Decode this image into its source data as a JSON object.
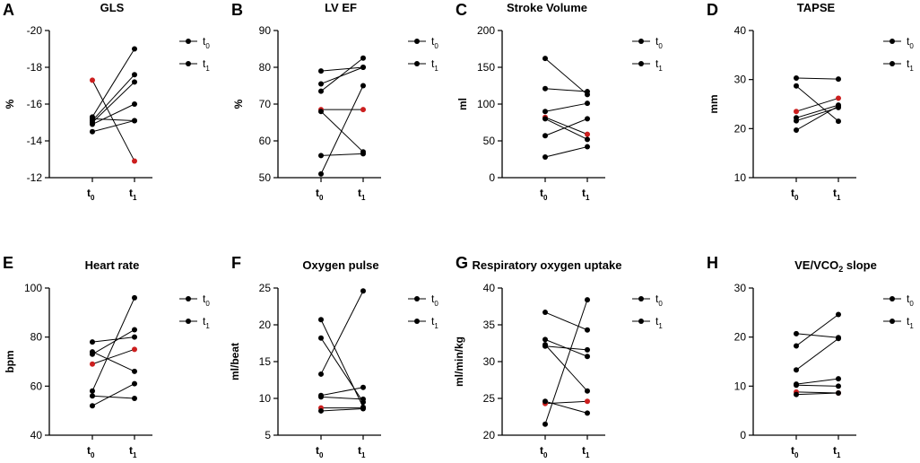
{
  "colors": {
    "point": "#000000",
    "highlight": "#cc1f1f"
  },
  "chart_data": [
    {
      "type": "line",
      "panel": "A",
      "title": "GLS",
      "ylabel": "%",
      "ylim": [
        -12,
        -20
      ],
      "yticks": [
        -12,
        -14,
        -16,
        -18,
        -20
      ],
      "categories": [
        "t0",
        "t1"
      ],
      "legend": [
        "t0",
        "t1"
      ],
      "highlight_index": 0,
      "series": [
        {
          "values": [
            -17.3,
            -12.9
          ]
        },
        {
          "values": [
            -15.3,
            -19.0
          ]
        },
        {
          "values": [
            -15.1,
            -17.6
          ]
        },
        {
          "values": [
            -15.0,
            -17.2
          ]
        },
        {
          "values": [
            -14.9,
            -16.0
          ]
        },
        {
          "values": [
            -15.2,
            -15.1
          ]
        },
        {
          "values": [
            -14.5,
            -15.1
          ]
        }
      ]
    },
    {
      "type": "line",
      "panel": "B",
      "title": "LV EF",
      "ylabel": "%",
      "ylim": [
        50,
        90
      ],
      "yticks": [
        50,
        60,
        70,
        80,
        90
      ],
      "categories": [
        "t0",
        "t1"
      ],
      "legend": [
        "t0",
        "t1"
      ],
      "highlight_index": 0,
      "series": [
        {
          "values": [
            68.5,
            68.5
          ]
        },
        {
          "values": [
            79.0,
            80.0
          ]
        },
        {
          "values": [
            75.5,
            80.0
          ]
        },
        {
          "values": [
            73.5,
            82.5
          ]
        },
        {
          "values": [
            68.0,
            57.0
          ]
        },
        {
          "values": [
            56.0,
            56.5
          ]
        },
        {
          "values": [
            51.0,
            75.0
          ]
        }
      ]
    },
    {
      "type": "line",
      "panel": "C",
      "title": "Stroke Volume",
      "ylabel": "ml",
      "ylim": [
        0,
        200
      ],
      "yticks": [
        0,
        50,
        100,
        150,
        200
      ],
      "categories": [
        "t0",
        "t1"
      ],
      "legend": [
        "t0",
        "t1"
      ],
      "highlight_index": 0,
      "series": [
        {
          "values": [
            82,
            59
          ]
        },
        {
          "values": [
            162,
            113
          ]
        },
        {
          "values": [
            121,
            117
          ]
        },
        {
          "values": [
            90,
            101
          ]
        },
        {
          "values": [
            80,
            52
          ]
        },
        {
          "values": [
            57,
            80
          ]
        },
        {
          "values": [
            28,
            42
          ]
        }
      ]
    },
    {
      "type": "line",
      "panel": "D",
      "title": "TAPSE",
      "ylabel": "mm",
      "ylim": [
        10,
        40
      ],
      "yticks": [
        10,
        20,
        30,
        40
      ],
      "categories": [
        "t0",
        "t1"
      ],
      "legend": [
        "t0",
        "t1"
      ],
      "highlight_index": 0,
      "series": [
        {
          "values": [
            23.5,
            26.2
          ]
        },
        {
          "values": [
            30.3,
            30.1
          ]
        },
        {
          "values": [
            28.7,
            21.5
          ]
        },
        {
          "values": [
            22.2,
            24.8
          ]
        },
        {
          "values": [
            21.6,
            24.3
          ]
        },
        {
          "values": [
            19.7,
            24.6
          ]
        }
      ]
    },
    {
      "type": "line",
      "panel": "E",
      "title": "Heart rate",
      "ylabel": "bpm",
      "ylim": [
        40,
        100
      ],
      "yticks": [
        40,
        60,
        80,
        100
      ],
      "categories": [
        "t0",
        "t1"
      ],
      "legend": [
        "t0",
        "t1"
      ],
      "highlight_index": 0,
      "series": [
        {
          "values": [
            69,
            75
          ]
        },
        {
          "values": [
            78,
            80
          ]
        },
        {
          "values": [
            74,
            66
          ]
        },
        {
          "values": [
            73,
            83
          ]
        },
        {
          "values": [
            58,
            96
          ]
        },
        {
          "values": [
            56,
            55
          ]
        },
        {
          "values": [
            52,
            61
          ]
        }
      ]
    },
    {
      "type": "line",
      "panel": "F",
      "title": "Oxygen pulse",
      "ylabel": "ml/beat",
      "ylim": [
        5,
        25
      ],
      "yticks": [
        5,
        10,
        15,
        20,
        25
      ],
      "categories": [
        "t0",
        "t1"
      ],
      "legend": [
        "t0",
        "t1"
      ],
      "highlight_index": 0,
      "series": [
        {
          "values": [
            8.7,
            8.7
          ]
        },
        {
          "values": [
            20.7,
            8.8
          ]
        },
        {
          "values": [
            18.2,
            9.5
          ]
        },
        {
          "values": [
            13.3,
            24.6
          ]
        },
        {
          "values": [
            10.4,
            11.5
          ]
        },
        {
          "values": [
            10.2,
            9.9
          ]
        },
        {
          "values": [
            8.3,
            8.6
          ]
        }
      ]
    },
    {
      "type": "line",
      "panel": "G",
      "title": "Respiratory oxygen uptake",
      "ylabel": "ml/min/kg",
      "ylim": [
        20,
        40
      ],
      "yticks": [
        20,
        25,
        30,
        35,
        40
      ],
      "categories": [
        "t0",
        "t1"
      ],
      "legend": [
        "t0",
        "t1"
      ],
      "highlight_index": 0,
      "series": [
        {
          "values": [
            24.3,
            24.6
          ]
        },
        {
          "values": [
            36.7,
            34.3
          ]
        },
        {
          "values": [
            33.0,
            30.7
          ]
        },
        {
          "values": [
            32.1,
            31.6
          ]
        },
        {
          "values": [
            24.6,
            23.0
          ]
        },
        {
          "values": [
            21.5,
            38.4
          ]
        },
        {
          "values": [
            32.3,
            26.0
          ]
        }
      ]
    },
    {
      "type": "line",
      "panel": "H",
      "title": "VE/VCO",
      "title_sub": "2",
      "title_suffix": " slope",
      "ylabel": "",
      "ylim": [
        0,
        30
      ],
      "yticks": [
        0,
        10,
        20,
        30
      ],
      "categories": [
        "t0",
        "t1"
      ],
      "legend": [
        "t0",
        "t1"
      ],
      "highlight_index": 0,
      "series": [
        {
          "values": [
            8.8,
            8.6
          ]
        },
        {
          "values": [
            20.7,
            19.9
          ]
        },
        {
          "values": [
            18.2,
            24.6
          ]
        },
        {
          "values": [
            13.3,
            19.7
          ]
        },
        {
          "values": [
            10.4,
            11.5
          ]
        },
        {
          "values": [
            10.2,
            10.0
          ]
        },
        {
          "values": [
            8.3,
            8.6
          ]
        }
      ]
    }
  ]
}
